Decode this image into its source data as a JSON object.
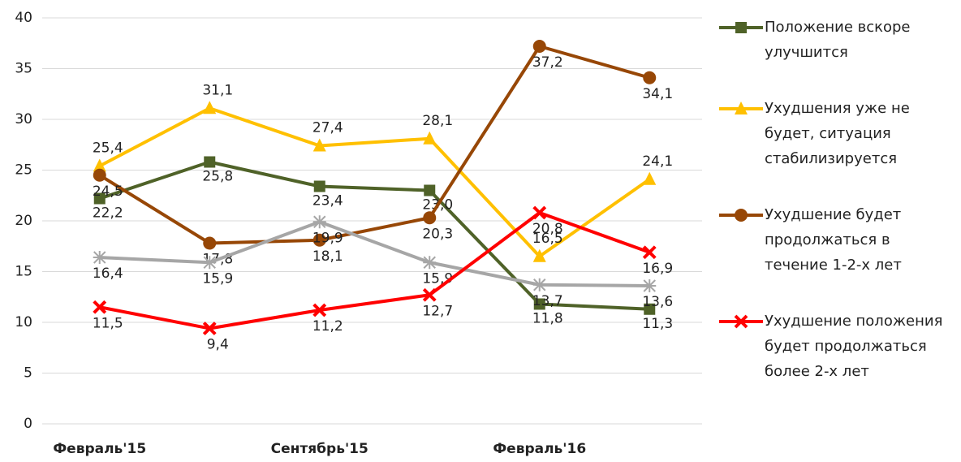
{
  "chart_data": {
    "type": "line",
    "categories": [
      "Февраль'15",
      null,
      "Сентябрь'15",
      null,
      "Февраль'16",
      null
    ],
    "ylim": [
      0,
      40
    ],
    "yticks": [
      0,
      5,
      10,
      15,
      20,
      25,
      30,
      35,
      40
    ],
    "grid": true,
    "legend": "right",
    "series": [
      {
        "name": "Положение вскоре улучшится",
        "color": "#4f6228",
        "marker": "square",
        "values": [
          22.2,
          25.8,
          23.4,
          23.0,
          11.8,
          11.3
        ],
        "value_labels": [
          "22,2",
          "25,8",
          "23,4",
          "23,0",
          "11,8",
          "11,3"
        ]
      },
      {
        "name": "Ухудшения уже не будет, ситуация стабилизируется",
        "color": "#ffc000",
        "marker": "triangle",
        "values": [
          25.4,
          31.1,
          27.4,
          28.1,
          16.5,
          24.1
        ],
        "value_labels": [
          "25,4",
          "31,1",
          "27,4",
          "28,1",
          "16,5",
          "24,1"
        ]
      },
      {
        "name": "Ухудшение будет продолжаться в течение 1-2-х лет",
        "color": "#974706",
        "marker": "circle",
        "values": [
          24.5,
          17.8,
          18.1,
          20.3,
          37.2,
          34.1
        ],
        "value_labels": [
          "24,5",
          "17,8",
          "18,1",
          "20,3",
          "37,2",
          "34,1"
        ]
      },
      {
        "color": "#a6a6a6",
        "marker": "star",
        "values": [
          16.4,
          15.9,
          19.9,
          15.9,
          13.7,
          13.6
        ],
        "value_labels": [
          "16,4",
          "15,9",
          "19,9",
          "15,9",
          "13,7",
          "13,6"
        ]
      },
      {
        "name": "Ухудшение положения будет продолжаться более 2-х лет",
        "color": "#ff0000",
        "marker": "x",
        "values": [
          11.5,
          9.4,
          11.2,
          12.7,
          20.8,
          16.9
        ],
        "value_labels": [
          "11,5",
          "9,4",
          "11,2",
          "12,7",
          "20,8",
          "16,9"
        ]
      }
    ]
  }
}
